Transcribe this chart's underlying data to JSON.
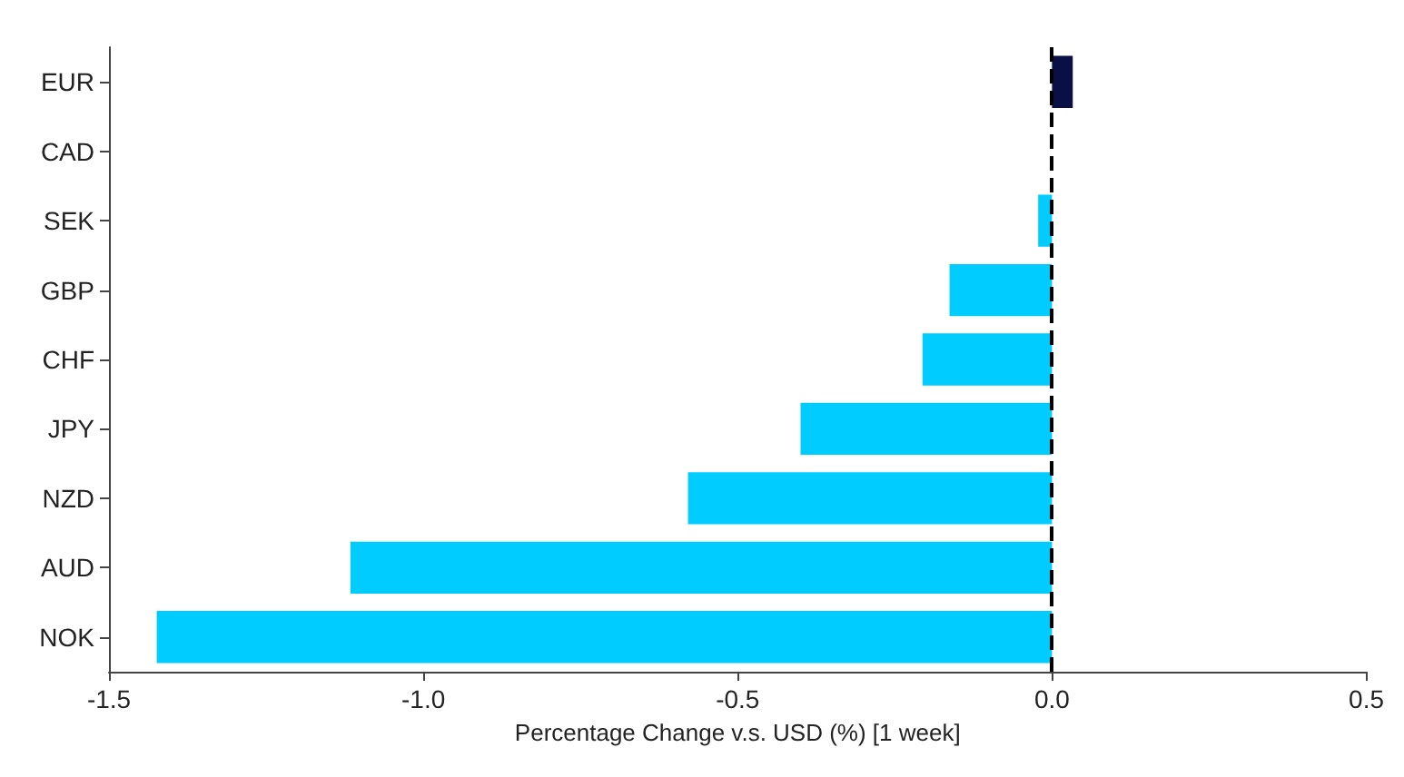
{
  "chart_data": {
    "type": "bar",
    "orientation": "horizontal",
    "xlabel": "Percentage Change v.s. USD (%) [1 week]",
    "categories": [
      "EUR",
      "CAD",
      "SEK",
      "GBP",
      "CHF",
      "JPY",
      "NZD",
      "AUD",
      "NOK"
    ],
    "values": [
      0.033,
      0,
      -0.022,
      -0.163,
      -0.206,
      -0.4,
      -0.579,
      -1.116,
      -1.424
    ],
    "colors": [
      "#0a0f45",
      "#00ccff",
      "#00ccff",
      "#00ccff",
      "#00ccff",
      "#00ccff",
      "#00ccff",
      "#00ccff",
      "#00ccff"
    ],
    "xlim": [
      -1.5,
      0.5
    ],
    "xticks": [
      {
        "value": -1.5,
        "label": "-1.5"
      },
      {
        "value": -1,
        "label": "-1.0"
      },
      {
        "value": -0.5,
        "label": "-0.5"
      },
      {
        "value": 0,
        "label": "0.0"
      },
      {
        "value": 0.5,
        "label": "0.5"
      }
    ],
    "ref_lines": [
      {
        "axis": "x",
        "value": 0,
        "color": "#000000",
        "line_style": "dashed"
      }
    ],
    "grid": false
  }
}
